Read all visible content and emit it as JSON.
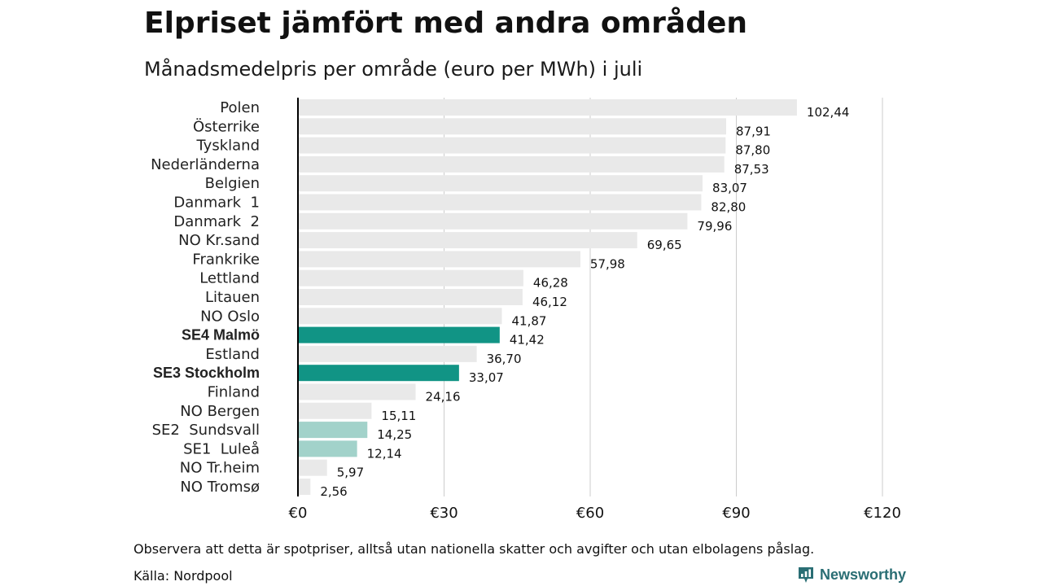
{
  "header": {
    "title": "Elpriset jämfört med andra områden",
    "subtitle": "Månadsmedelpris per område (euro per MWh) i juli"
  },
  "footer": {
    "note": "Observera att detta är spotpriser, alltså utan nationella skatter och avgifter och utan elbolagens påslag.",
    "source": "Källa: Nordpool",
    "brand": "Newsworthy",
    "brand_icon": "newsworthy-logo-icon"
  },
  "colors": {
    "default_bar": "#e9e9e9",
    "highlight_bar": "#119485",
    "highlight_light_bar": "#a2d2ca",
    "axis": "#000000",
    "grid": "#cccccc",
    "brand": "#2a6e74"
  },
  "chart_data": {
    "type": "bar",
    "orientation": "horizontal",
    "title": "Elpriset jämfört med andra områden",
    "subtitle": "Månadsmedelpris per område (euro per MWh) i juli",
    "xlabel": "",
    "ylabel": "",
    "xlim": [
      0,
      120
    ],
    "x_ticks": [
      0,
      30,
      60,
      90,
      120
    ],
    "x_tick_labels": [
      "€0",
      "€30",
      "€60",
      "€90",
      "€120"
    ],
    "grid": true,
    "legend": "none",
    "categories": [
      "Polen",
      "Österrike",
      "Tyskland",
      "Nederländerna",
      "Belgien",
      "Danmark  1",
      "Danmark  2",
      "NO Kr.sand",
      "Frankrike",
      "Lettland",
      "Litauen",
      "NO Oslo",
      "SE4 Malmö",
      "Estland",
      "SE3 Stockholm",
      "Finland",
      "NO Bergen",
      "SE2  Sundsvall",
      "SE1  Luleå",
      "NO Tr.heim",
      "NO Tromsø"
    ],
    "values": [
      102.44,
      87.91,
      87.8,
      87.53,
      83.07,
      82.8,
      79.96,
      69.65,
      57.98,
      46.28,
      46.12,
      41.87,
      41.42,
      36.7,
      33.07,
      24.16,
      15.11,
      14.25,
      12.14,
      5.97,
      2.56
    ],
    "value_labels": [
      "102,44",
      "87,91",
      "87,80",
      "87,53",
      "83,07",
      "82,80",
      "79,96",
      "69,65",
      "57,98",
      "46,28",
      "46,12",
      "41,87",
      "41,42",
      "36,70",
      "33,07",
      "24,16",
      "15,11",
      "14,25",
      "12,14",
      "5,97",
      "2,56"
    ],
    "highlight": [
      "none",
      "none",
      "none",
      "none",
      "none",
      "none",
      "none",
      "none",
      "none",
      "none",
      "none",
      "none",
      "strong",
      "none",
      "strong",
      "none",
      "none",
      "light",
      "light",
      "none",
      "none"
    ]
  }
}
